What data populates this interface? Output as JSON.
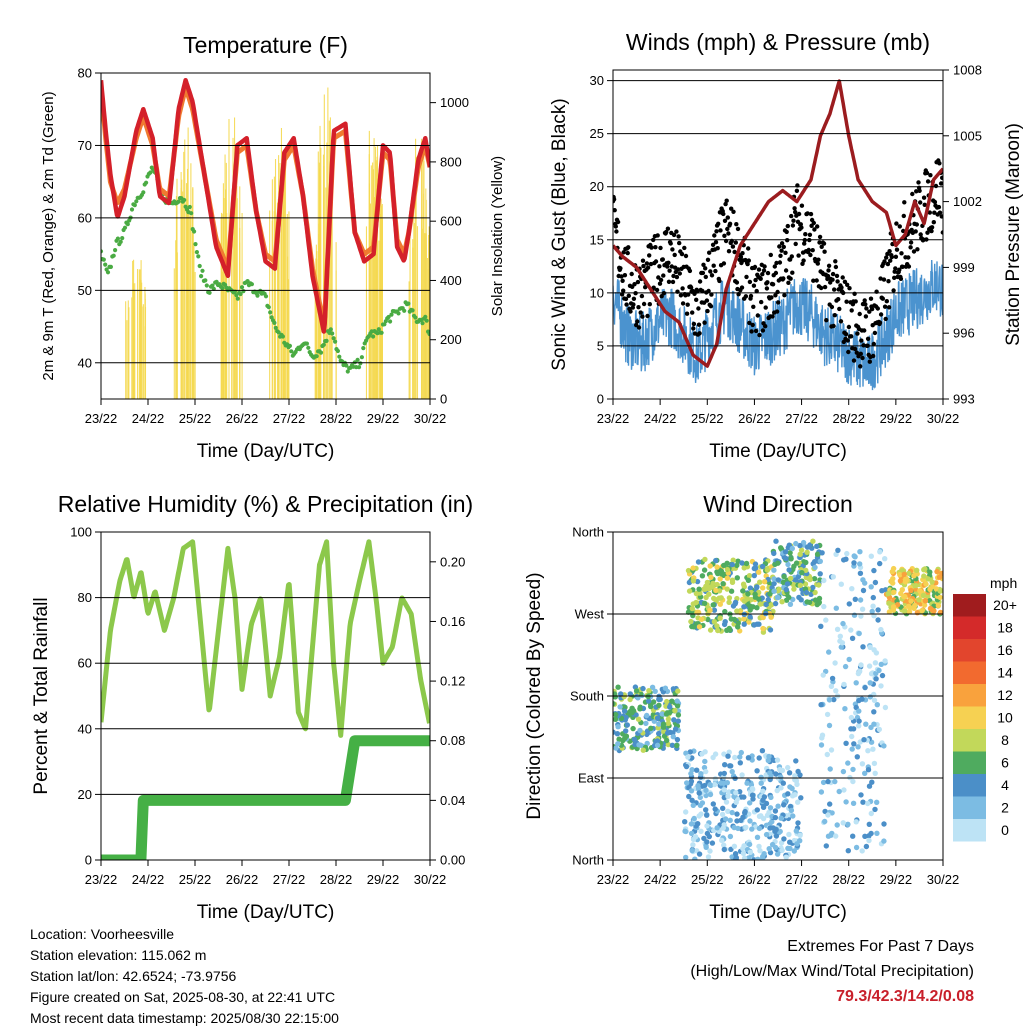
{
  "chart_data": [
    {
      "type": "line",
      "title": "Temperature (F)",
      "xlabel": "Time (Day/UTC)",
      "ylabel": "2m & 9m T (Red, Orange) & 2m Td (Green)",
      "y2label": "Solar Insolation (Yellow)",
      "xticks": [
        "23/22",
        "24/22",
        "25/22",
        "26/22",
        "27/22",
        "28/22",
        "29/22",
        "30/22"
      ],
      "xlim": [
        0,
        7
      ],
      "ylim": [
        35,
        80
      ],
      "yticks": [
        40,
        50,
        60,
        70,
        80
      ],
      "y2lim": [
        0,
        1100
      ],
      "y2ticks": [
        0,
        200,
        400,
        600,
        800,
        1000
      ],
      "grid": "horizontal",
      "series": [
        {
          "name": "2m T",
          "color": "#d4202a",
          "x": [
            0,
            0.1,
            0.2,
            0.35,
            0.5,
            0.75,
            0.9,
            1.1,
            1.25,
            1.45,
            1.65,
            1.8,
            1.95,
            2.2,
            2.45,
            2.7,
            2.9,
            3.1,
            3.3,
            3.5,
            3.7,
            3.9,
            4.1,
            4.3,
            4.5,
            4.75,
            4.95,
            5.2,
            5.4,
            5.6,
            5.8,
            6.0,
            6.15,
            6.3,
            6.45,
            6.55,
            6.75,
            6.9,
            7.0
          ],
          "y": [
            79,
            72,
            66,
            60,
            63,
            72,
            75,
            71,
            63,
            62,
            75,
            79,
            76,
            66,
            56,
            52,
            70,
            71,
            61,
            54,
            53,
            69,
            71,
            63,
            52,
            44,
            72,
            73,
            58,
            54,
            55,
            70,
            69,
            56,
            54,
            58,
            68,
            71,
            67
          ]
        },
        {
          "name": "9m T",
          "color": "#f07a30",
          "x": [
            0,
            0.1,
            0.2,
            0.35,
            0.5,
            0.75,
            0.9,
            1.1,
            1.25,
            1.45,
            1.65,
            1.8,
            1.95,
            2.2,
            2.45,
            2.7,
            2.9,
            3.1,
            3.3,
            3.5,
            3.7,
            3.9,
            4.1,
            4.3,
            4.5,
            4.75,
            4.95,
            5.2,
            5.4,
            5.6,
            5.8,
            6.0,
            6.15,
            6.3,
            6.45,
            6.55,
            6.75,
            6.9,
            7.0
          ],
          "y": [
            78,
            71,
            65,
            62,
            64,
            71,
            74,
            70,
            64,
            63,
            74,
            78,
            75,
            66,
            57,
            53,
            69,
            70,
            61,
            55,
            54,
            68,
            70,
            63,
            53,
            45,
            71,
            72,
            58,
            55,
            56,
            69,
            68,
            57,
            55,
            58,
            67,
            70,
            67
          ]
        },
        {
          "name": "2m Td",
          "color": "#4aab43",
          "x": [
            0,
            0.15,
            0.3,
            0.5,
            0.7,
            0.9,
            1.1,
            1.3,
            1.5,
            1.7,
            1.9,
            2.1,
            2.3,
            2.5,
            2.7,
            2.9,
            3.1,
            3.3,
            3.5,
            3.7,
            3.9,
            4.1,
            4.3,
            4.5,
            4.7,
            4.9,
            5.1,
            5.3,
            5.5,
            5.7,
            5.9,
            6.1,
            6.3,
            6.5,
            6.7,
            6.9,
            7.0
          ],
          "y": [
            55,
            52,
            56,
            58,
            62,
            64,
            67,
            63,
            62,
            63,
            61,
            53,
            50,
            51,
            50,
            49,
            51,
            50,
            49,
            45,
            43,
            41,
            43,
            41,
            42,
            45,
            40,
            39,
            40,
            44,
            44,
            46,
            47,
            48,
            46,
            46,
            44
          ]
        },
        {
          "name": "Solar Insolation",
          "color": "#f5d94f",
          "axis": "y2",
          "style": "daily-peaks",
          "peaks": [
            {
              "x": 0.75,
              "y": 550
            },
            {
              "x": 1.78,
              "y": 1000
            },
            {
              "x": 2.78,
              "y": 1020
            },
            {
              "x": 3.78,
              "y": 1000
            },
            {
              "x": 4.78,
              "y": 1100
            },
            {
              "x": 5.78,
              "y": 1000
            },
            {
              "x": 6.78,
              "y": 980
            }
          ]
        }
      ]
    },
    {
      "type": "scatter",
      "title": "Winds (mph) & Pressure (mb)",
      "xlabel": "Time (Day/UTC)",
      "ylabel": "Sonic Wind & Gust (Blue, Black)",
      "y2label": "Station Pressure (Maroon)",
      "xticks": [
        "23/22",
        "24/22",
        "25/22",
        "26/22",
        "27/22",
        "28/22",
        "29/22",
        "30/22"
      ],
      "xlim": [
        0,
        7
      ],
      "ylim": [
        0,
        31
      ],
      "yticks": [
        0,
        5,
        10,
        15,
        20,
        25,
        30
      ],
      "y2lim": [
        993,
        1008
      ],
      "y2ticks": [
        993,
        996,
        999,
        1002,
        1005,
        1008
      ],
      "grid": "horizontal",
      "series": [
        {
          "name": "Sonic Wind",
          "color": "#4b93cf",
          "style": "dense-line",
          "x": [
            0,
            0.3,
            0.6,
            0.9,
            1.2,
            1.5,
            1.8,
            2.1,
            2.4,
            2.7,
            3.0,
            3.3,
            3.6,
            3.9,
            4.2,
            4.5,
            4.8,
            5.1,
            5.4,
            5.7,
            6.0,
            6.3,
            6.6,
            6.9,
            7.0
          ],
          "y": [
            10,
            6,
            5,
            7,
            8,
            6,
            4,
            7,
            9,
            7,
            5,
            6,
            7,
            9,
            8,
            6,
            5,
            4,
            3,
            5,
            8,
            9,
            10,
            11,
            10
          ]
        },
        {
          "name": "Gust",
          "color": "#000000",
          "style": "scatter",
          "x": [
            0,
            0.3,
            0.6,
            0.9,
            1.2,
            1.5,
            1.8,
            2.1,
            2.4,
            2.7,
            3.0,
            3.3,
            3.6,
            3.9,
            4.2,
            4.5,
            4.8,
            5.1,
            5.4,
            5.7,
            6.0,
            6.3,
            6.6,
            6.9,
            7.0
          ],
          "y": [
            16,
            11,
            10,
            12,
            14,
            11,
            8,
            12,
            16,
            13,
            9,
            10,
            12,
            17,
            15,
            11,
            9,
            7,
            6,
            9,
            14,
            16,
            18,
            20,
            19
          ]
        },
        {
          "name": "Station Pressure",
          "color": "#9b1c1f",
          "axis": "y2",
          "x": [
            0,
            0.2,
            0.5,
            0.8,
            1.1,
            1.4,
            1.7,
            2.0,
            2.2,
            2.4,
            2.7,
            3.0,
            3.3,
            3.6,
            3.9,
            4.2,
            4.4,
            4.6,
            4.8,
            5.0,
            5.2,
            5.5,
            5.8,
            6.0,
            6.2,
            6.4,
            6.6,
            6.8,
            7.0
          ],
          "y": [
            1000,
            999.5,
            999,
            998,
            997,
            996.5,
            995,
            994.5,
            995.5,
            998,
            1000,
            1001,
            1002,
            1002.5,
            1002,
            1003,
            1005,
            1006,
            1007.5,
            1005,
            1003,
            1002,
            1001.5,
            1000,
            1000.5,
            1002,
            1001,
            1003,
            1003.5
          ]
        }
      ]
    },
    {
      "type": "line",
      "title": "Relative Humidity (%) & Precipitation (in)",
      "xlabel": "Time (Day/UTC)",
      "ylabel": "Percent & Total Rainfall",
      "xticks": [
        "23/22",
        "24/22",
        "25/22",
        "26/22",
        "27/22",
        "28/22",
        "29/22",
        "30/22"
      ],
      "xlim": [
        0,
        7
      ],
      "ylim": [
        0,
        100
      ],
      "yticks": [
        0,
        20,
        40,
        60,
        80,
        100
      ],
      "y2lim": [
        0,
        0.22
      ],
      "y2ticks": [
        "0.00",
        "0.04",
        "0.08",
        "0.12",
        "0.16",
        "0.20"
      ],
      "grid": "horizontal",
      "series": [
        {
          "name": "Relative Humidity",
          "color": "#8cc84b",
          "x": [
            0,
            0.2,
            0.4,
            0.55,
            0.7,
            0.85,
            1.0,
            1.15,
            1.35,
            1.55,
            1.75,
            1.95,
            2.1,
            2.3,
            2.5,
            2.7,
            2.85,
            3.0,
            3.2,
            3.4,
            3.6,
            3.8,
            4.0,
            4.2,
            4.35,
            4.5,
            4.65,
            4.8,
            4.95,
            5.1,
            5.3,
            5.5,
            5.7,
            5.85,
            6.0,
            6.2,
            6.4,
            6.6,
            6.8,
            7.0
          ],
          "y": [
            42,
            70,
            85,
            92,
            80,
            88,
            75,
            82,
            70,
            80,
            95,
            97,
            75,
            45,
            70,
            95,
            80,
            52,
            72,
            80,
            50,
            62,
            85,
            45,
            40,
            65,
            90,
            97,
            60,
            38,
            72,
            85,
            97,
            80,
            60,
            65,
            80,
            75,
            55,
            41
          ]
        },
        {
          "name": "Total Precipitation",
          "color": "#45b045",
          "axis": "y2",
          "x": [
            0,
            0.85,
            0.9,
            5.2,
            5.4,
            7.0
          ],
          "y": [
            0,
            0,
            0.04,
            0.04,
            0.08,
            0.08
          ]
        }
      ]
    },
    {
      "type": "scatter",
      "title": "Wind Direction",
      "xlabel": "Time (Day/UTC)",
      "ylabel": "Direction (Colored By Speed)",
      "xticks": [
        "23/22",
        "24/22",
        "25/22",
        "26/22",
        "27/22",
        "28/22",
        "29/22",
        "30/22"
      ],
      "xlim": [
        0,
        7
      ],
      "ylim": [
        0,
        360
      ],
      "yticks": [
        {
          "v": 0,
          "label": "North"
        },
        {
          "v": 90,
          "label": "East"
        },
        {
          "v": 180,
          "label": "South"
        },
        {
          "v": 270,
          "label": "West"
        },
        {
          "v": 360,
          "label": "North"
        }
      ],
      "grid": "horizontal",
      "clusters": [
        {
          "x0": 0.0,
          "x1": 1.4,
          "dir0": 120,
          "dir1": 190,
          "speed": 5
        },
        {
          "x0": 1.6,
          "x1": 3.4,
          "dir0": 250,
          "dir1": 330,
          "speed": 7
        },
        {
          "x0": 3.4,
          "x1": 4.4,
          "dir0": 280,
          "dir1": 350,
          "speed": 5
        },
        {
          "x0": 4.4,
          "x1": 5.8,
          "dir0": 10,
          "dir1": 340,
          "speed": 2
        },
        {
          "x0": 5.8,
          "x1": 7.0,
          "dir0": 270,
          "dir1": 320,
          "speed": 9
        },
        {
          "x0": 1.5,
          "x1": 4.0,
          "dir0": 0,
          "dir1": 120,
          "speed": 2
        }
      ],
      "legend": {
        "title": "mph",
        "placement": "right",
        "labels": [
          "20+",
          "18",
          "16",
          "14",
          "12",
          "10",
          "8",
          "6",
          "4",
          "2",
          "0"
        ],
        "colors": [
          "#a01c1e",
          "#d42a2a",
          "#e2452d",
          "#f26a2f",
          "#f9a23d",
          "#f6d152",
          "#c2d85a",
          "#4fab5f",
          "#4b8fc8",
          "#7cbce3",
          "#bde3f5"
        ]
      }
    }
  ],
  "info": {
    "location": "Location: Voorheesville",
    "elevation": "Station elevation: 115.062 m",
    "latlon": "Station lat/lon: 42.6524; -73.9756",
    "created": "Figure created on Sat, 2025-08-30, at 22:41 UTC",
    "recent": "Most recent data timestamp: 2025/08/30 22:15:00"
  },
  "extremes": {
    "title": "Extremes For Past 7 Days",
    "subtitle": "(High/Low/Max Wind/Total Precipitation)",
    "values": "79.3/42.3/14.2/0.08"
  }
}
